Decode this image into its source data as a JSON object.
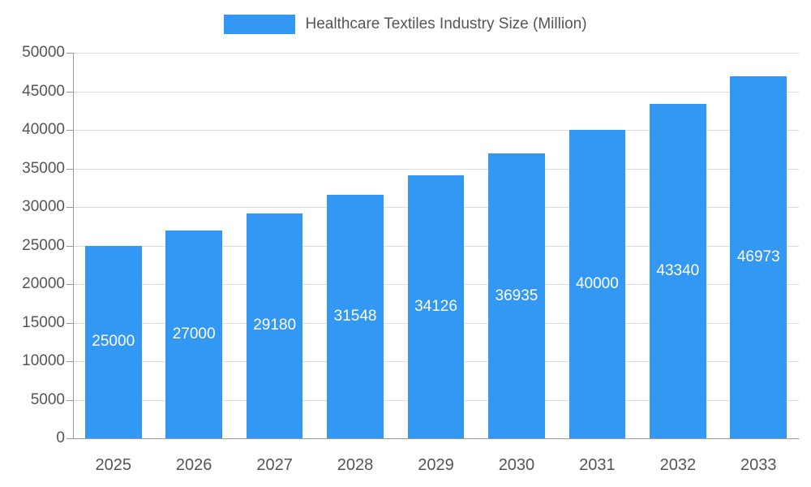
{
  "chart_data": {
    "type": "bar",
    "title": "Healthcare Textiles Industry Size (Million)",
    "categories": [
      "2025",
      "2026",
      "2027",
      "2028",
      "2029",
      "2030",
      "2031",
      "2032",
      "2033"
    ],
    "values": [
      25000,
      27000,
      29180,
      31548,
      34126,
      36935,
      40000,
      43340,
      46973
    ],
    "xlabel": "",
    "ylabel": "",
    "ylim": [
      0,
      50000
    ],
    "y_tick_step": 5000,
    "y_tick_labels": [
      "0",
      "5000",
      "10000",
      "15000",
      "20000",
      "25000",
      "30000",
      "35000",
      "40000",
      "45000",
      "50000"
    ],
    "grid": true,
    "legend_position": "top",
    "bar_color": "#3398F4",
    "value_label_color": "#ffffff",
    "axis_text_color": "#555555"
  }
}
